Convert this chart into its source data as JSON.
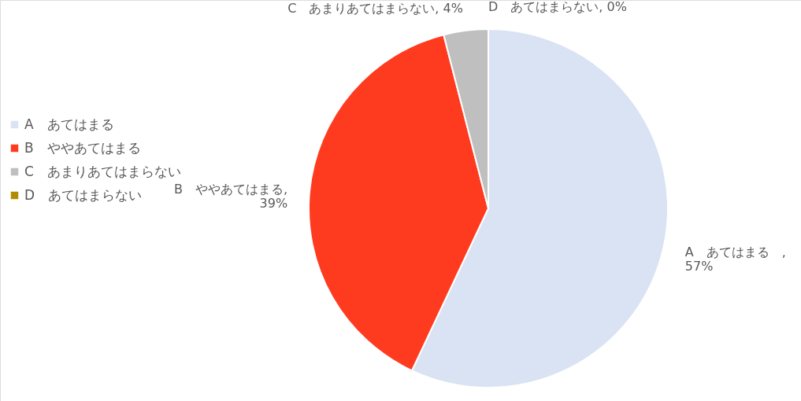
{
  "chart_data": {
    "type": "pie",
    "categories": [
      "A　あてはまる",
      "B　ややあてはまる",
      "C　あまりあてはまらない",
      "D　あてはまらない"
    ],
    "values": [
      57,
      39,
      4,
      0
    ],
    "colors": [
      "#dae3f3",
      "#ff3b1f",
      "#bfbfbf",
      "#b08c00"
    ],
    "value_labels": [
      "A　あてはまる　,\n57%",
      "B　ややあてはまる,\n39%",
      "C　あまりあてはまらない, 4%",
      "D　あてはまらない, 0%"
    ],
    "legend": "left"
  }
}
